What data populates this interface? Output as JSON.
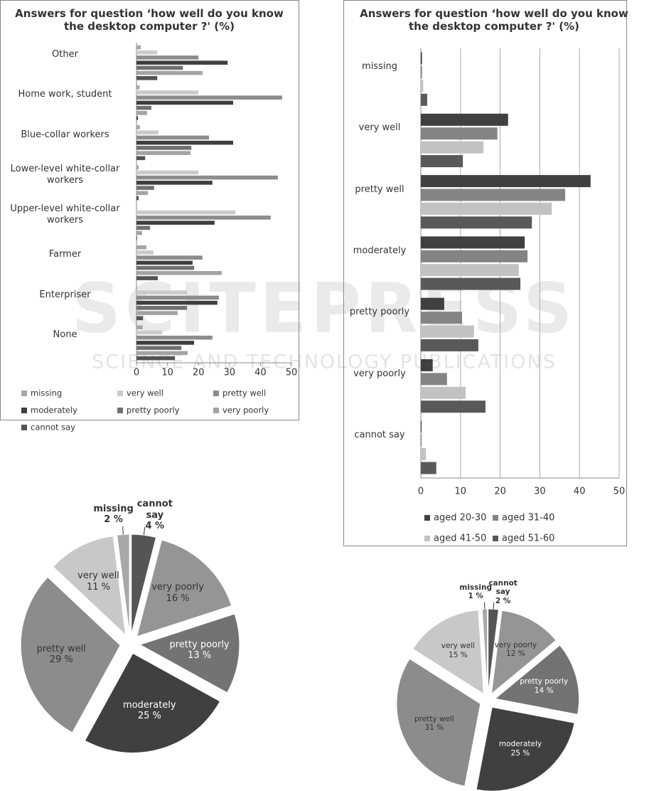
{
  "watermark": {
    "title": "SCITEPRESS",
    "subtitle": "SCIENCE AND TECHNOLOGY PUBLICATIONS"
  },
  "chart_data": [
    {
      "type": "hbar",
      "title": "Answers for question ‘how well do you know the desktop computer ?' (%)",
      "categories": [
        "Other",
        "Home work, student",
        "Blue-collar workers",
        "Lower-level white-collar workers",
        "Upper-level white-collar workers",
        "Farmer",
        "Enterpriser",
        "None"
      ],
      "series": [
        {
          "name": "missing",
          "color": "#a6a6a6",
          "values": [
            1.4,
            1,
            1.1,
            0.7,
            0,
            3.2,
            0.2,
            2
          ]
        },
        {
          "name": "very well",
          "color": "#cbcbcb",
          "values": [
            6.7,
            20,
            7.1,
            20,
            31.9,
            5.5,
            16.3,
            8.3
          ]
        },
        {
          "name": "pretty well",
          "color": "#8c8c8c",
          "values": [
            20,
            47,
            23.4,
            45.6,
            43.3,
            21.3,
            26.6,
            24.5
          ]
        },
        {
          "name": "moderately",
          "color": "#3f3f3f",
          "values": [
            29.4,
            31.2,
            31.2,
            24.5,
            25.2,
            18.1,
            26.1,
            18.6
          ]
        },
        {
          "name": "pretty poorly",
          "color": "#707070",
          "values": [
            15,
            4.8,
            17.7,
            5.7,
            4.4,
            18.6,
            16.3,
            14.5
          ]
        },
        {
          "name": "very poorly",
          "color": "#a3a3a3",
          "values": [
            21.3,
            3.4,
            17.4,
            3.7,
            1.8,
            27.5,
            13.3,
            16.5
          ]
        },
        {
          "name": "cannot say",
          "color": "#535353",
          "values": [
            6.7,
            0.5,
            2.8,
            0.7,
            0.2,
            6.9,
            2.1,
            12.4
          ]
        }
      ],
      "xlim": [
        0,
        50
      ],
      "xticks": [
        0,
        10,
        20,
        30,
        40,
        50
      ],
      "grid": false
    },
    {
      "type": "hbar",
      "title": "Answers for question ‘how well do you know the desktop computer ?' (%)",
      "categories": [
        "missing",
        "very well",
        "pretty well",
        "moderately",
        "pretty poorly",
        "very poorly",
        "cannot say"
      ],
      "series": [
        {
          "name": "aged 20-30",
          "color": "#404040",
          "values": [
            0.3,
            22,
            42.8,
            26.2,
            5.9,
            3,
            0.2
          ]
        },
        {
          "name": "aged 31-40",
          "color": "#848484",
          "values": [
            0.3,
            19.3,
            36.4,
            26.9,
            10.4,
            6.6,
            0.2
          ]
        },
        {
          "name": "aged 41-50",
          "color": "#c2c2c2",
          "values": [
            0.6,
            15.8,
            33,
            24.7,
            13.4,
            11.3,
            1.3
          ]
        },
        {
          "name": "aged 51-60",
          "color": "#595959",
          "values": [
            1.6,
            10.6,
            28,
            25.1,
            14.5,
            16.3,
            3.9
          ]
        }
      ],
      "xlim": [
        0,
        50
      ],
      "xticks": [
        0,
        10,
        20,
        30,
        40,
        50
      ],
      "grid": true
    },
    {
      "type": "pie",
      "categories": [
        "cannot say",
        "very poorly",
        "pretty poorly",
        "moderately",
        "pretty well",
        "very well",
        "missing"
      ],
      "values": [
        4,
        16,
        13,
        25,
        29,
        11,
        2
      ],
      "value_labels": [
        "4 %",
        "16 %",
        "13 %",
        "25 %",
        "29 %",
        "11 %",
        "2 %"
      ],
      "colors": [
        "#555555",
        "#959595",
        "#737373",
        "#404040",
        "#8c8c8c",
        "#c8c8c8",
        "#a8a8a8"
      ]
    },
    {
      "type": "pie",
      "categories": [
        "cannot say",
        "very poorly",
        "pretty poorly",
        "moderately",
        "pretty well",
        "very well",
        "missing"
      ],
      "values": [
        2,
        12,
        14,
        25,
        31,
        15,
        1
      ],
      "value_labels": [
        "2 %",
        "12 %",
        "14 %",
        "25 %",
        "31 %",
        "15 %",
        "1 %"
      ],
      "colors": [
        "#555555",
        "#959595",
        "#737373",
        "#404040",
        "#8c8c8c",
        "#c8c8c8",
        "#a8a8a8"
      ]
    }
  ]
}
